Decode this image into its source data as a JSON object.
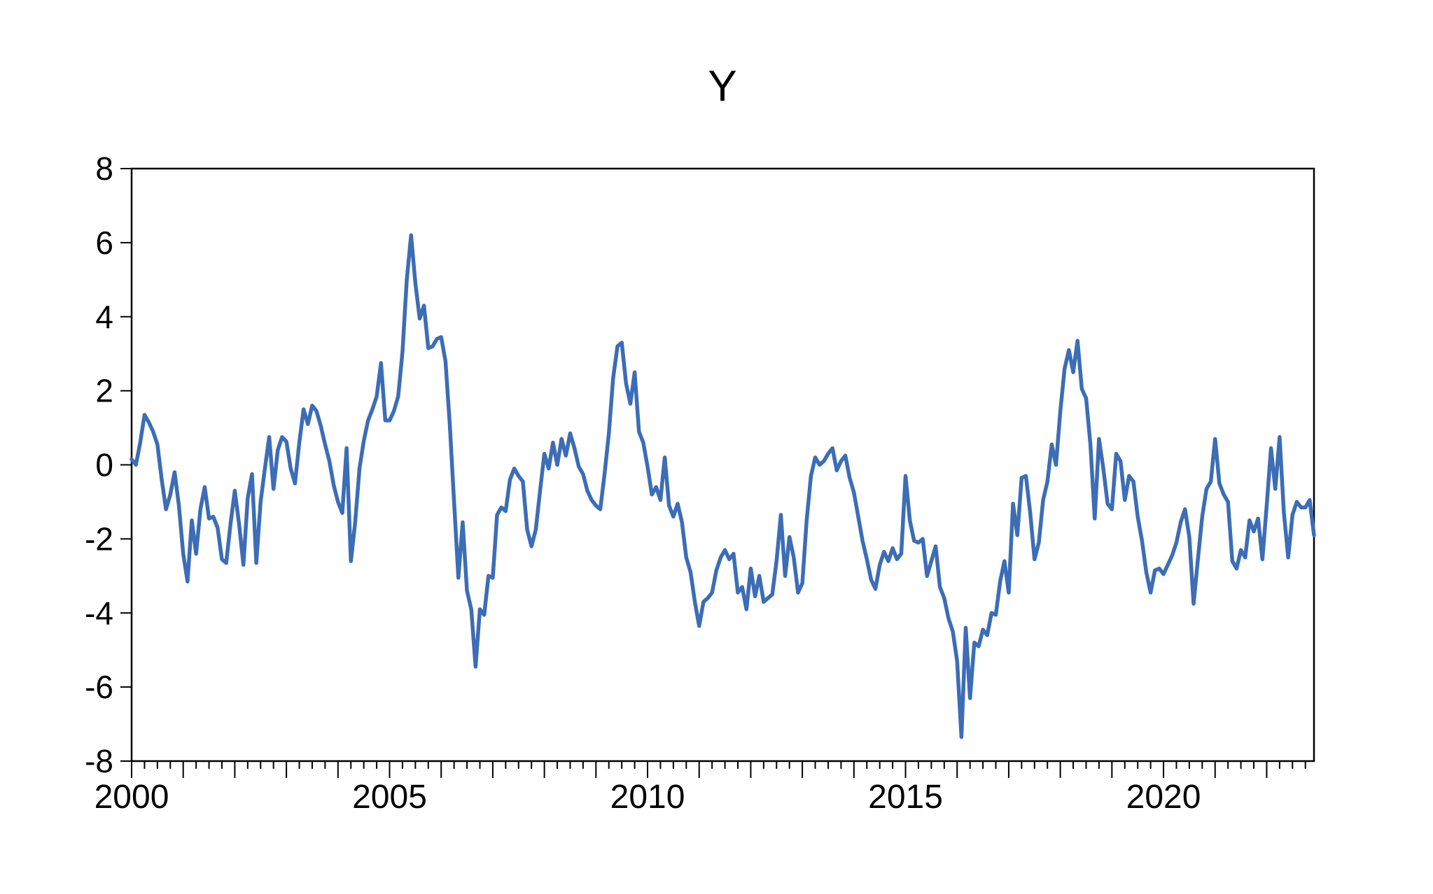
{
  "page": {
    "background": "#ffffff"
  },
  "chart_data": {
    "type": "line",
    "title": "Y",
    "series": [
      {
        "name": "Y",
        "frequency": "monthly",
        "start": "2000M01",
        "end": "2022M12",
        "values": [
          0.15,
          0.0,
          0.6,
          1.35,
          1.15,
          0.9,
          0.55,
          -0.4,
          -1.2,
          -0.8,
          -0.2,
          -1.1,
          -2.4,
          -3.15,
          -1.5,
          -2.4,
          -1.2,
          -0.6,
          -1.45,
          -1.4,
          -1.7,
          -2.55,
          -2.65,
          -1.6,
          -0.7,
          -1.6,
          -2.7,
          -0.9,
          -0.25,
          -2.65,
          -1.0,
          -0.1,
          0.75,
          -0.65,
          0.4,
          0.75,
          0.63,
          -0.1,
          -0.5,
          0.6,
          1.5,
          1.1,
          1.6,
          1.45,
          1.05,
          0.55,
          0.1,
          -0.55,
          -1.0,
          -1.3,
          0.45,
          -2.6,
          -1.55,
          -0.1,
          0.65,
          1.2,
          1.5,
          1.85,
          2.75,
          1.2,
          1.2,
          1.45,
          1.85,
          3.05,
          5.0,
          6.2,
          4.9,
          3.95,
          4.3,
          3.15,
          3.2,
          3.4,
          3.45,
          2.8,
          1.1,
          -1.0,
          -3.05,
          -1.55,
          -3.4,
          -3.9,
          -5.45,
          -3.9,
          -4.05,
          -3.0,
          -3.05,
          -1.35,
          -1.15,
          -1.25,
          -0.4,
          -0.1,
          -0.3,
          -0.45,
          -1.75,
          -2.2,
          -1.75,
          -0.7,
          0.3,
          -0.1,
          0.6,
          0.0,
          0.7,
          0.25,
          0.85,
          0.45,
          -0.05,
          -0.25,
          -0.7,
          -0.95,
          -1.1,
          -1.2,
          -0.25,
          0.85,
          2.35,
          3.2,
          3.3,
          2.2,
          1.65,
          2.5,
          0.9,
          0.6,
          -0.05,
          -0.8,
          -0.6,
          -0.95,
          0.2,
          -1.1,
          -1.4,
          -1.05,
          -1.55,
          -2.5,
          -2.9,
          -3.7,
          -4.35,
          -3.7,
          -3.6,
          -3.45,
          -2.85,
          -2.5,
          -2.3,
          -2.55,
          -2.4,
          -3.45,
          -3.3,
          -3.9,
          -2.8,
          -3.55,
          -3.0,
          -3.7,
          -3.6,
          -3.5,
          -2.6,
          -1.35,
          -3.0,
          -1.95,
          -2.5,
          -3.45,
          -3.2,
          -1.5,
          -0.3,
          0.2,
          0.0,
          0.1,
          0.3,
          0.45,
          -0.15,
          0.1,
          0.25,
          -0.35,
          -0.75,
          -1.4,
          -2.05,
          -2.55,
          -3.1,
          -3.35,
          -2.7,
          -2.35,
          -2.6,
          -2.25,
          -2.55,
          -2.4,
          -0.3,
          -1.5,
          -2.05,
          -2.1,
          -2.0,
          -3.0,
          -2.6,
          -2.2,
          -3.3,
          -3.6,
          -4.15,
          -4.5,
          -5.3,
          -7.35,
          -4.4,
          -6.3,
          -4.8,
          -4.9,
          -4.45,
          -4.6,
          -4.0,
          -4.05,
          -3.15,
          -2.6,
          -3.45,
          -1.05,
          -1.9,
          -0.35,
          -0.3,
          -1.3,
          -2.55,
          -2.1,
          -0.95,
          -0.45,
          0.55,
          0.0,
          1.45,
          2.6,
          3.1,
          2.5,
          3.35,
          2.05,
          1.8,
          0.55,
          -1.45,
          0.7,
          -0.1,
          -1.05,
          -1.2,
          0.3,
          0.1,
          -0.95,
          -0.3,
          -0.45,
          -1.4,
          -2.05,
          -2.9,
          -3.45,
          -2.85,
          -2.8,
          -2.95,
          -2.7,
          -2.45,
          -2.1,
          -1.55,
          -1.2,
          -1.95,
          -3.75,
          -2.55,
          -1.4,
          -0.65,
          -0.45,
          0.7,
          -0.5,
          -0.8,
          -1.0,
          -2.6,
          -2.8,
          -2.3,
          -2.5,
          -1.5,
          -1.8,
          -1.45,
          -2.55,
          -1.1,
          0.45,
          -0.65,
          0.75,
          -1.3,
          -2.5,
          -1.35,
          -1.0,
          -1.15,
          -1.15,
          -0.95,
          -1.9
        ]
      }
    ],
    "xlabel": "",
    "ylabel": "",
    "ylim": [
      -8,
      8
    ],
    "y_ticks": [
      8,
      6,
      4,
      2,
      0,
      -2,
      -4,
      -6,
      -8
    ],
    "x_domain_years": [
      2000,
      2022.9167
    ],
    "x_minor_tick_step_years": 0.25,
    "x_major_tick_step_years": 1,
    "x_tick_label_years": [
      2000,
      2005,
      2010,
      2015,
      2020
    ],
    "grid": "off",
    "legend": "none",
    "line_color": "#3c6db6",
    "axis_color": "#000000",
    "plot_background": "#ffffff"
  }
}
